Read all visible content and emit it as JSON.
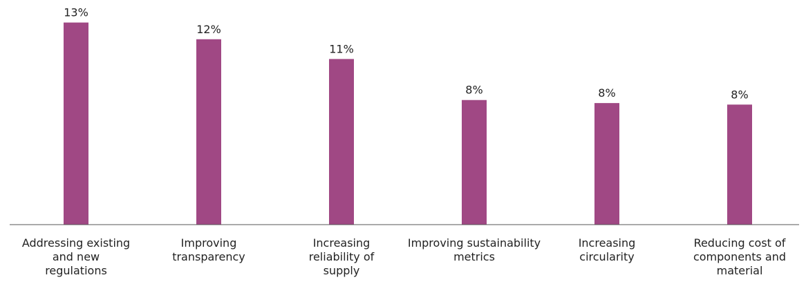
{
  "chart_data": {
    "type": "bar",
    "title": "",
    "xlabel": "",
    "ylabel": "",
    "categories": [
      [
        "Addressing existing",
        "and new",
        "regulations"
      ],
      [
        "Improving",
        "transparency"
      ],
      [
        "Increasing",
        "reliability of",
        "supply"
      ],
      [
        "Improving sustainability",
        "metrics"
      ],
      [
        "Increasing",
        "circularity"
      ],
      [
        "Reducing cost of",
        "components and",
        "material"
      ]
    ],
    "values": [
      13,
      12,
      11,
      8,
      8,
      8
    ],
    "value_labels": [
      "13%",
      "12%",
      "11%",
      "8%",
      "8%",
      "8%"
    ],
    "plot_values": [
      13.3,
      12.2,
      10.9,
      8.2,
      8.0,
      7.9
    ],
    "ylim": [
      0,
      13.6
    ],
    "grid": false,
    "legend": "none",
    "bar_color": "#a04884",
    "axis_color": "#555555"
  }
}
